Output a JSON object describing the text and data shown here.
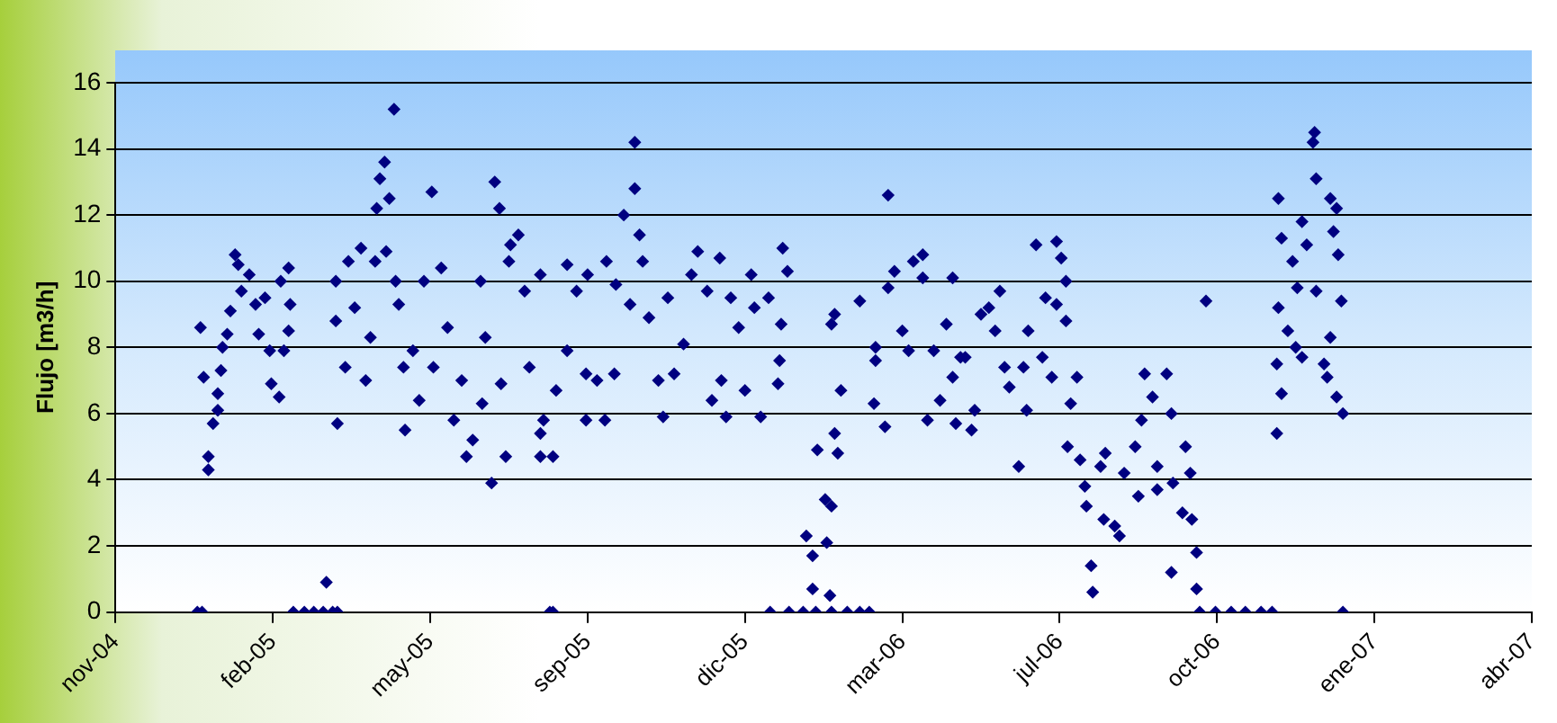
{
  "chart_data": {
    "type": "scatter",
    "ylabel": "Flujo [m3/h]",
    "marker": "diamond",
    "grid": "y",
    "legend": false,
    "xlim": [
      "2004-11-09",
      "2007-04-28"
    ],
    "xticks": [
      {
        "value": "2004-11-09",
        "label": "nov-04"
      },
      {
        "value": "2005-02-17",
        "label": "feb-05"
      },
      {
        "value": "2005-05-28",
        "label": "may-05"
      },
      {
        "value": "2005-09-05",
        "label": "sep-05"
      },
      {
        "value": "2005-12-14",
        "label": "dic-05"
      },
      {
        "value": "2006-03-24",
        "label": "mar-06"
      },
      {
        "value": "2006-07-02",
        "label": "jul-06"
      },
      {
        "value": "2006-10-10",
        "label": "oct-06"
      },
      {
        "value": "2007-01-18",
        "label": "ene-07"
      },
      {
        "value": "2007-04-28",
        "label": "abr-07"
      }
    ],
    "ylim": [
      0,
      16
    ],
    "yticks": [
      0,
      2,
      4,
      6,
      8,
      10,
      12,
      14,
      16
    ],
    "series": [
      {
        "color": "#000080",
        "x": [
          "2004-12-31",
          "2005-01-02",
          "2005-01-03",
          "2005-01-04",
          "2005-01-07",
          "2005-01-07",
          "2005-01-10",
          "2005-01-13",
          "2005-01-13",
          "2005-01-15",
          "2005-01-16",
          "2005-01-19",
          "2005-01-21",
          "2005-01-24",
          "2005-01-26",
          "2005-01-28",
          "2005-02-02",
          "2005-02-06",
          "2005-02-08",
          "2005-02-12",
          "2005-02-15",
          "2005-02-16",
          "2005-02-21",
          "2005-02-22",
          "2005-02-24",
          "2005-02-27",
          "2005-02-27",
          "2005-02-28",
          "2005-03-02",
          "2005-03-09",
          "2005-03-15",
          "2005-03-21",
          "2005-03-23",
          "2005-03-27",
          "2005-03-29",
          "2005-03-29",
          "2005-03-30",
          "2005-03-30",
          "2005-04-04",
          "2005-04-06",
          "2005-04-10",
          "2005-04-14",
          "2005-04-17",
          "2005-04-20",
          "2005-04-23",
          "2005-04-24",
          "2005-04-26",
          "2005-04-29",
          "2005-04-30",
          "2005-05-02",
          "2005-05-05",
          "2005-05-06",
          "2005-05-08",
          "2005-05-11",
          "2005-05-12",
          "2005-05-17",
          "2005-05-21",
          "2005-05-24",
          "2005-05-29",
          "2005-05-30",
          "2005-06-04",
          "2005-06-08",
          "2005-06-12",
          "2005-06-17",
          "2005-06-20",
          "2005-06-24",
          "2005-06-29",
          "2005-06-30",
          "2005-07-02",
          "2005-07-06",
          "2005-07-08",
          "2005-07-11",
          "2005-07-12",
          "2005-07-15",
          "2005-07-17",
          "2005-07-18",
          "2005-07-23",
          "2005-07-27",
          "2005-07-30",
          "2005-08-06",
          "2005-08-06",
          "2005-08-06",
          "2005-08-08",
          "2005-08-12",
          "2005-08-14",
          "2005-08-14",
          "2005-08-16",
          "2005-08-23",
          "2005-08-23",
          "2005-08-29",
          "2005-09-04",
          "2005-09-04",
          "2005-09-05",
          "2005-09-11",
          "2005-09-16",
          "2005-09-17",
          "2005-09-22",
          "2005-09-23",
          "2005-09-28",
          "2005-10-02",
          "2005-10-05",
          "2005-10-05",
          "2005-10-08",
          "2005-10-10",
          "2005-10-14",
          "2005-10-20",
          "2005-10-23",
          "2005-10-26",
          "2005-10-30",
          "2005-11-05",
          "2005-11-10",
          "2005-11-14",
          "2005-11-20",
          "2005-11-23",
          "2005-11-28",
          "2005-11-29",
          "2005-12-02",
          "2005-12-05",
          "2005-12-10",
          "2005-12-14",
          "2005-12-18",
          "2005-12-20",
          "2005-12-24",
          "2005-12-29",
          "2005-12-30",
          "2006-01-04",
          "2006-01-05",
          "2006-01-06",
          "2006-01-07",
          "2006-01-10",
          "2006-01-11",
          "2006-01-20",
          "2006-01-22",
          "2006-01-26",
          "2006-01-26",
          "2006-01-28",
          "2006-01-29",
          "2006-02-03",
          "2006-02-04",
          "2006-02-06",
          "2006-02-07",
          "2006-02-07",
          "2006-02-07",
          "2006-02-09",
          "2006-02-09",
          "2006-02-11",
          "2006-02-13",
          "2006-02-17",
          "2006-02-25",
          "2006-02-25",
          "2006-03-03",
          "2006-03-06",
          "2006-03-07",
          "2006-03-07",
          "2006-03-13",
          "2006-03-15",
          "2006-03-15",
          "2006-03-19",
          "2006-03-24",
          "2006-03-28",
          "2006-03-31",
          "2006-04-06",
          "2006-04-06",
          "2006-04-09",
          "2006-04-13",
          "2006-04-17",
          "2006-04-21",
          "2006-04-25",
          "2006-04-25",
          "2006-04-27",
          "2006-04-30",
          "2006-05-03",
          "2006-05-07",
          "2006-05-09",
          "2006-05-13",
          "2006-05-18",
          "2006-05-22",
          "2006-05-25",
          "2006-05-28",
          "2006-05-31",
          "2006-06-06",
          "2006-06-09",
          "2006-06-11",
          "2006-06-12",
          "2006-06-17",
          "2006-06-21",
          "2006-06-23",
          "2006-06-27",
          "2006-06-30",
          "2006-06-30",
          "2006-07-03",
          "2006-07-06",
          "2006-07-06",
          "2006-07-07",
          "2006-07-09",
          "2006-07-13",
          "2006-07-15",
          "2006-07-18",
          "2006-07-19",
          "2006-07-22",
          "2006-07-23",
          "2006-07-28",
          "2006-07-30",
          "2006-07-31",
          "2006-08-06",
          "2006-08-09",
          "2006-08-12",
          "2006-08-19",
          "2006-08-21",
          "2006-08-23",
          "2006-08-25",
          "2006-08-30",
          "2006-09-02",
          "2006-09-02",
          "2006-09-08",
          "2006-09-11",
          "2006-09-11",
          "2006-09-12",
          "2006-09-18",
          "2006-09-20",
          "2006-09-23",
          "2006-09-24",
          "2006-09-27",
          "2006-09-27",
          "2006-09-29",
          "2006-10-03",
          "2006-10-09",
          "2006-10-19",
          "2006-10-28",
          "2006-11-07",
          "2006-11-14",
          "2006-11-17",
          "2006-11-17",
          "2006-11-18",
          "2006-11-18",
          "2006-11-20",
          "2006-11-20",
          "2006-11-24",
          "2006-11-27",
          "2006-11-29",
          "2006-11-30",
          "2006-12-03",
          "2006-12-03",
          "2006-12-06",
          "2006-12-10",
          "2006-12-11",
          "2006-12-12",
          "2006-12-12",
          "2006-12-17",
          "2006-12-19",
          "2006-12-21",
          "2006-12-21",
          "2006-12-23",
          "2006-12-25",
          "2006-12-25",
          "2006-12-26",
          "2006-12-28",
          "2006-12-29",
          "2006-12-29"
        ],
        "values": [
          0,
          8.6,
          0,
          7.1,
          4.7,
          4.3,
          5.7,
          6.1,
          6.6,
          7.3,
          8.0,
          8.4,
          9.1,
          10.8,
          10.5,
          9.7,
          10.2,
          9.3,
          8.4,
          9.5,
          7.9,
          6.9,
          6.5,
          10.0,
          7.9,
          10.4,
          8.5,
          9.3,
          0,
          0,
          0,
          0,
          0.9,
          0,
          10.0,
          8.8,
          0,
          5.7,
          7.4,
          10.6,
          9.2,
          11.0,
          7.0,
          8.3,
          10.6,
          12.2,
          13.1,
          13.6,
          10.9,
          12.5,
          15.2,
          10.0,
          9.3,
          7.4,
          5.5,
          7.9,
          6.4,
          10.0,
          12.7,
          7.4,
          10.4,
          8.6,
          5.8,
          7.0,
          4.7,
          5.2,
          10.0,
          6.3,
          8.3,
          3.9,
          13.0,
          12.2,
          6.9,
          4.7,
          10.6,
          11.1,
          11.4,
          9.7,
          7.4,
          10.2,
          4.7,
          5.4,
          5.8,
          0,
          0,
          4.7,
          6.7,
          10.5,
          7.9,
          9.7,
          5.8,
          7.2,
          10.2,
          7.0,
          5.8,
          10.6,
          7.2,
          9.9,
          12.0,
          9.3,
          14.2,
          12.8,
          11.4,
          10.6,
          8.9,
          7.0,
          5.9,
          9.5,
          7.2,
          8.1,
          10.2,
          10.9,
          9.7,
          6.4,
          10.7,
          7.0,
          5.9,
          9.5,
          8.6,
          6.7,
          10.2,
          9.2,
          5.9,
          9.5,
          0,
          6.9,
          7.6,
          8.7,
          11.0,
          10.3,
          0,
          0,
          2.3,
          1.7,
          0.7,
          0,
          4.9,
          3.4,
          2.1,
          0.5,
          3.2,
          8.7,
          0,
          5.4,
          9.0,
          4.8,
          6.7,
          0,
          9.4,
          0,
          0,
          6.3,
          7.6,
          8.0,
          5.6,
          12.6,
          9.8,
          10.3,
          8.5,
          7.9,
          10.6,
          10.8,
          10.1,
          5.8,
          7.9,
          6.4,
          8.7,
          10.1,
          7.1,
          5.7,
          7.7,
          7.7,
          5.5,
          6.1,
          9.0,
          9.2,
          8.5,
          9.7,
          7.4,
          6.8,
          4.4,
          7.4,
          6.1,
          8.5,
          11.1,
          7.7,
          9.5,
          7.1,
          11.2,
          9.3,
          10.7,
          10.0,
          8.8,
          5.0,
          6.3,
          7.1,
          4.6,
          3.8,
          3.2,
          1.4,
          0.6,
          4.4,
          2.8,
          4.8,
          2.6,
          2.3,
          4.2,
          5.0,
          3.5,
          5.8,
          7.2,
          6.5,
          4.4,
          3.7,
          7.2,
          6.0,
          1.2,
          3.9,
          3.0,
          5.0,
          4.2,
          2.8,
          1.8,
          0.7,
          0,
          9.4,
          0,
          0,
          0,
          0,
          0,
          5.4,
          7.5,
          9.2,
          12.5,
          6.6,
          11.3,
          8.5,
          10.6,
          8.0,
          9.8,
          7.7,
          11.8,
          11.1,
          14.2,
          14.5,
          13.1,
          9.7,
          7.5,
          7.1,
          8.3,
          12.5,
          11.5,
          12.2,
          6.5,
          10.8,
          9.4,
          6.0,
          0
        ]
      }
    ]
  }
}
